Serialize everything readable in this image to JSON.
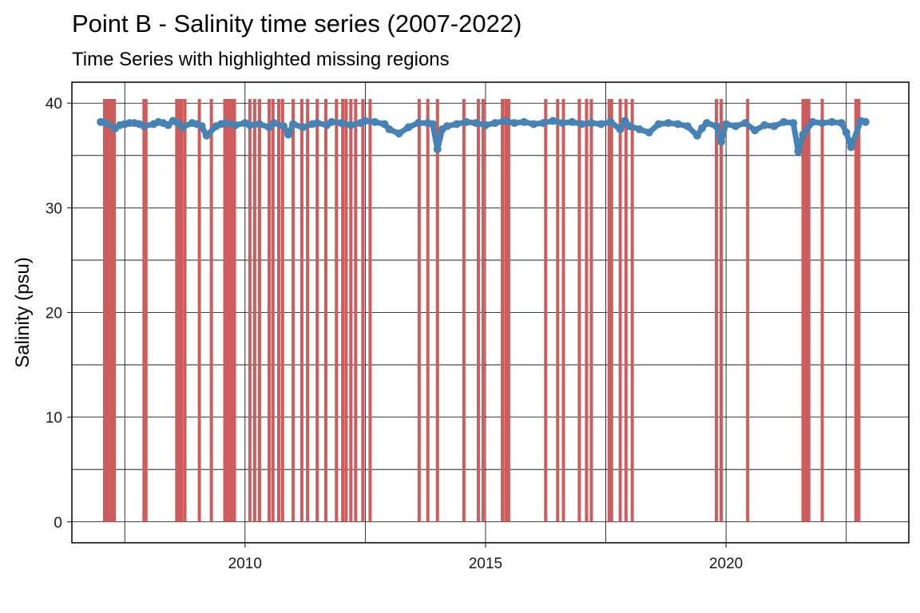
{
  "chart_data": {
    "type": "scatter",
    "title": "Point B - Salinity time series (2007-2022)",
    "subtitle": "Time Series with highlighted missing regions",
    "xlabel": "",
    "ylabel": "Salinity (psu)",
    "x_ticks": [
      2010,
      2015,
      2020
    ],
    "y_ticks": [
      0,
      10,
      20,
      30,
      40
    ],
    "xlim": [
      2006.4,
      2023.8
    ],
    "ylim": [
      -2,
      42
    ],
    "grid": true,
    "point_color": "#4682B4",
    "missing_color": "#CD5C5C",
    "series": [
      {
        "x": [
          2007.0,
          2007.1,
          2007.3,
          2007.4,
          2007.5,
          2007.6,
          2007.7,
          2007.8,
          2007.9,
          2008.1,
          2008.2,
          2008.3,
          2008.4,
          2008.5,
          2008.6,
          2008.7,
          2008.9,
          2009.0,
          2009.1,
          2009.2,
          2009.4,
          2009.5,
          2009.6,
          2009.8,
          2010.0,
          2010.1,
          2010.3,
          2010.5,
          2010.6,
          2010.8,
          2010.9,
          2011.0,
          2011.2,
          2011.4,
          2011.5,
          2011.7,
          2011.8,
          2012.0,
          2012.2,
          2012.4,
          2012.5,
          2012.7,
          2012.9,
          2013.0,
          2013.2,
          2013.4,
          2013.6,
          2013.8,
          2013.9,
          2014.0,
          2014.1,
          2014.2,
          2014.4,
          2014.6,
          2014.8,
          2015.0,
          2015.2,
          2015.4,
          2015.6,
          2015.8,
          2016.0,
          2016.2,
          2016.4,
          2016.6,
          2016.8,
          2017.0,
          2017.2,
          2017.4,
          2017.6,
          2017.8,
          2017.9,
          2018.0,
          2018.2,
          2018.4,
          2018.6,
          2018.8,
          2019.0,
          2019.2,
          2019.4,
          2019.5,
          2019.6,
          2019.8,
          2019.9,
          2020.0,
          2020.2,
          2020.4,
          2020.6,
          2020.8,
          2021.0,
          2021.2,
          2021.4,
          2021.5,
          2021.6,
          2021.8,
          2022.0,
          2022.2,
          2022.4,
          2022.5,
          2022.6,
          2022.8,
          2022.9
        ],
        "y": [
          38.2,
          38.1,
          37.6,
          37.9,
          38.0,
          38.1,
          38.1,
          38.0,
          37.8,
          38.0,
          38.2,
          38.1,
          37.9,
          38.3,
          38.1,
          37.7,
          38.1,
          38.0,
          37.8,
          36.9,
          37.8,
          38.0,
          38.1,
          37.9,
          38.1,
          37.9,
          38.0,
          37.7,
          38.1,
          37.8,
          37.0,
          38.0,
          37.7,
          38.0,
          38.1,
          37.9,
          38.2,
          38.1,
          37.9,
          38.1,
          38.3,
          38.2,
          38.0,
          37.5,
          37.1,
          37.7,
          38.1,
          38.1,
          38.0,
          35.6,
          37.5,
          37.8,
          38.0,
          38.2,
          38.1,
          37.9,
          38.1,
          38.3,
          38.1,
          38.2,
          38.0,
          38.1,
          38.3,
          38.1,
          38.2,
          38.0,
          38.1,
          38.0,
          38.2,
          37.5,
          38.3,
          37.8,
          37.5,
          37.2,
          38.0,
          38.1,
          38.0,
          37.8,
          36.9,
          37.6,
          38.1,
          37.8,
          36.3,
          38.0,
          37.8,
          38.1,
          37.4,
          37.9,
          37.8,
          38.2,
          38.1,
          35.4,
          37.0,
          38.2,
          38.1,
          38.2,
          38.1,
          37.2,
          35.8,
          38.3,
          38.2
        ]
      }
    ],
    "missing_regions": [
      2007.08,
      2007.12,
      2007.16,
      2007.2,
      2007.24,
      2007.28,
      2007.9,
      2007.94,
      2008.58,
      2008.62,
      2008.68,
      2008.75,
      2009.05,
      2009.3,
      2009.58,
      2009.62,
      2009.68,
      2009.72,
      2009.78,
      2010.1,
      2010.2,
      2010.3,
      2010.5,
      2010.58,
      2010.7,
      2010.78,
      2011.0,
      2011.18,
      2011.3,
      2011.5,
      2011.68,
      2011.9,
      2012.03,
      2012.1,
      2012.2,
      2012.3,
      2012.45,
      2012.6,
      2013.62,
      2013.8,
      2014.0,
      2014.55,
      2014.85,
      2014.95,
      2015.35,
      2015.42,
      2015.48,
      2016.25,
      2016.5,
      2016.62,
      2016.95,
      2017.1,
      2017.2,
      2017.57,
      2017.62,
      2017.8,
      2017.92,
      2018.05,
      2019.8,
      2019.9,
      2020.45,
      2021.6,
      2021.66,
      2021.72,
      2022.0,
      2022.7,
      2022.76
    ]
  }
}
